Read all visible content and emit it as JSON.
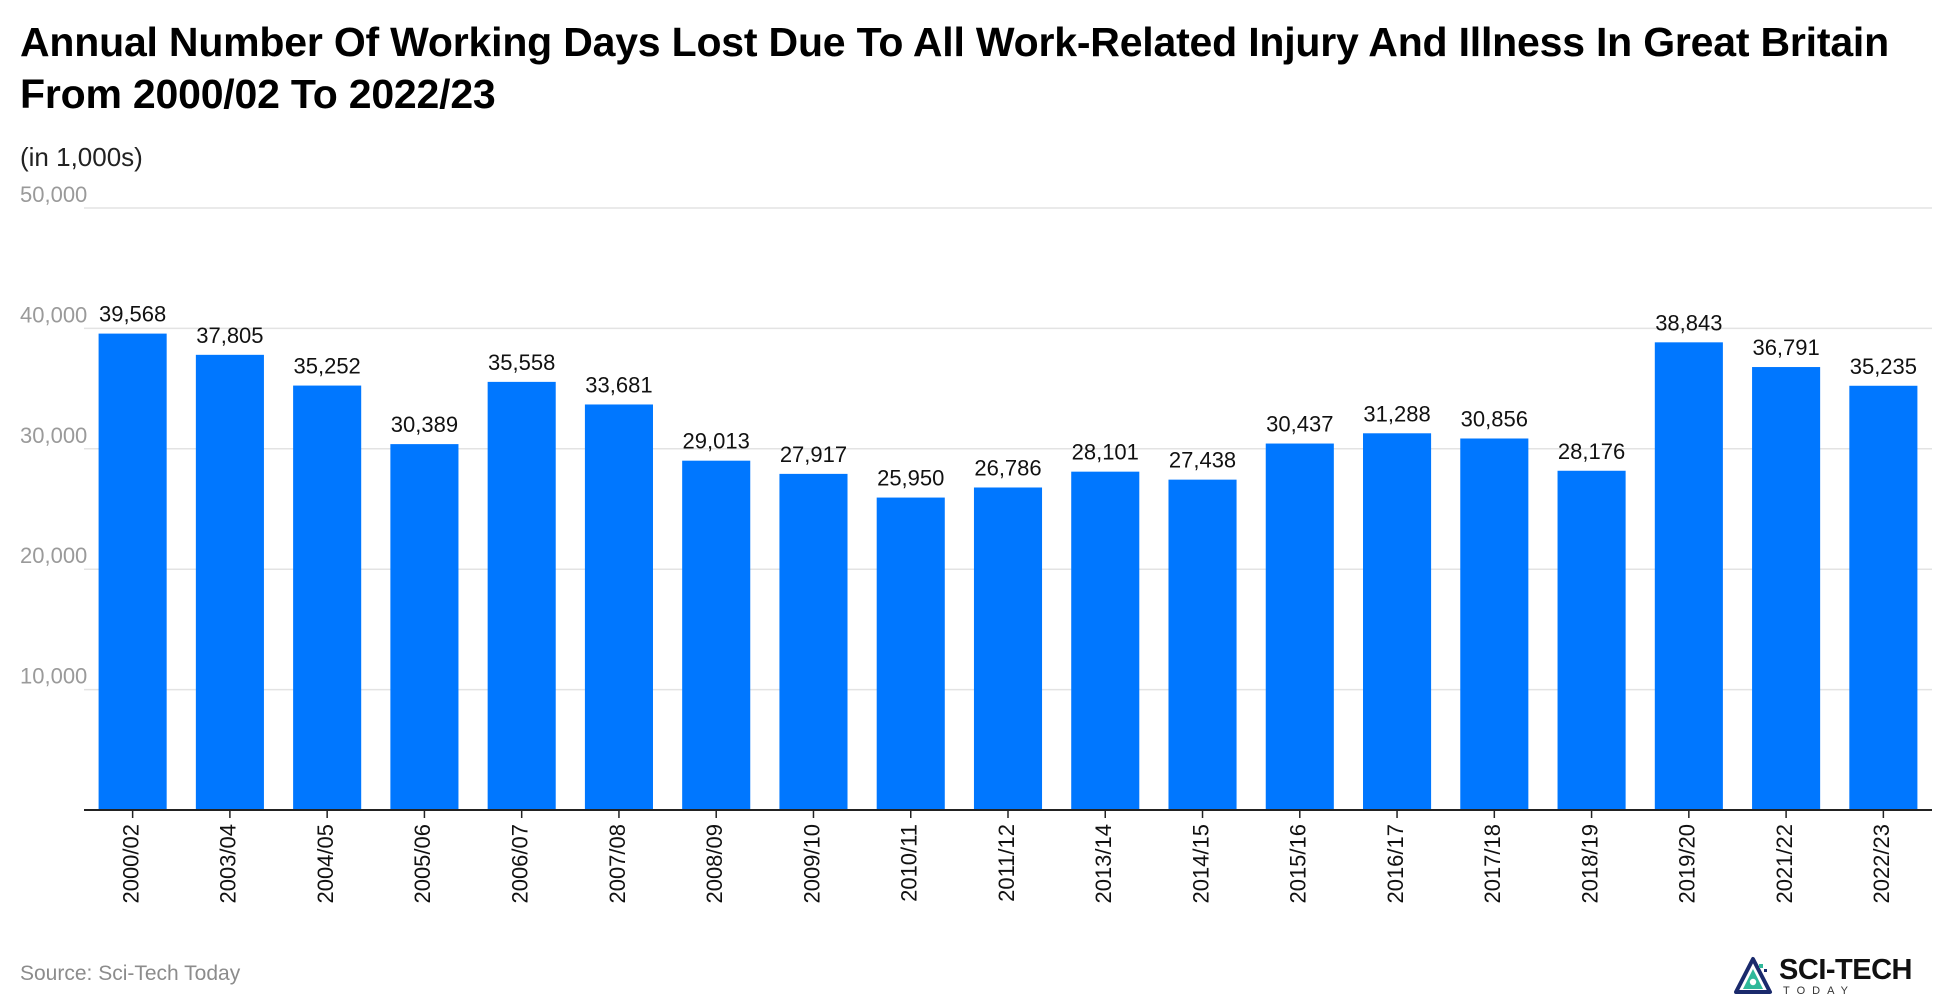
{
  "chart_data": {
    "type": "bar",
    "title": "Annual Number Of Working Days Lost Due To All Work-Related Injury And Illness In Great Britain From 2000/02 To 2022/23",
    "subtitle": "(in 1,000s)",
    "categories": [
      "2000/02",
      "2003/04",
      "2004/05",
      "2005/06",
      "2006/07",
      "2007/08",
      "2008/09",
      "2009/10",
      "2010/11",
      "2011/12",
      "2013/14",
      "2014/15",
      "2015/16",
      "2016/17",
      "2017/18",
      "2018/19",
      "2019/20",
      "2021/22",
      "2022/23"
    ],
    "values": [
      39568,
      37805,
      35252,
      30389,
      35558,
      33681,
      29013,
      27917,
      25950,
      26786,
      28101,
      27438,
      30437,
      31288,
      30856,
      28176,
      38843,
      36791,
      35235
    ],
    "value_labels": [
      "39,568",
      "37,805",
      "35,252",
      "30,389",
      "35,558",
      "33,681",
      "29,013",
      "27,917",
      "25,950",
      "26,786",
      "28,101",
      "27,438",
      "30,437",
      "31,288",
      "30,856",
      "28,176",
      "38,843",
      "36,791",
      "35,235"
    ],
    "ylim": [
      0,
      50000
    ],
    "yticks": [
      10000,
      20000,
      30000,
      40000,
      50000
    ],
    "ytick_labels": [
      "10,000",
      "20,000",
      "30,000",
      "40,000",
      "50,000"
    ],
    "xlabel": "",
    "ylabel": "",
    "grid": true,
    "legend": "none",
    "bar_color": "#0077ff",
    "grid_color": "#e3e3e3",
    "tick_label_color": "#9a9a9a"
  },
  "footer": {
    "source": "Source: Sci-Tech Today",
    "brand_name": "SCI-TECH",
    "brand_sub": "TODAY"
  },
  "icons": {
    "logo": "sci-tech-logo-icon"
  }
}
